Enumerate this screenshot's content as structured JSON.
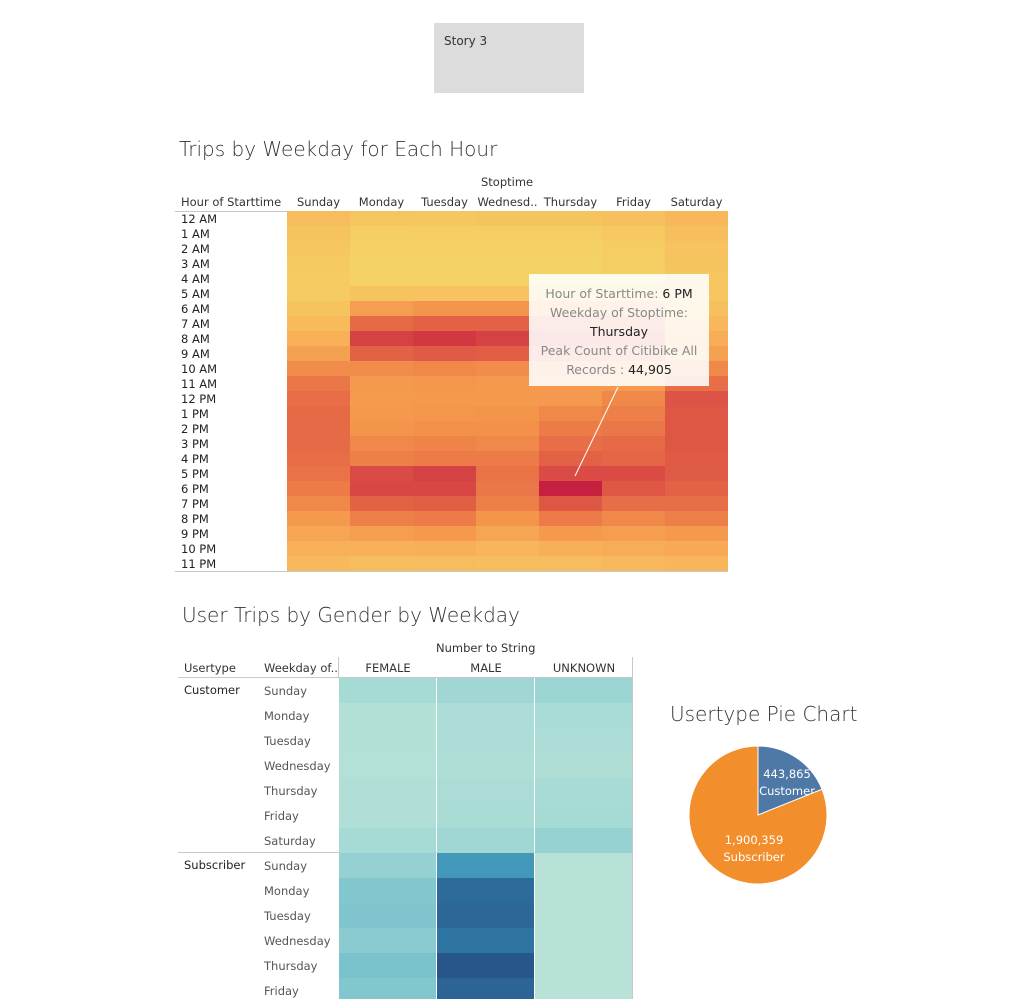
{
  "story_button": {
    "label": "Story 3"
  },
  "heatmap": {
    "title": "Trips by Weekday for Each Hour",
    "column_group_label": "Stoptime",
    "row_header": "Hour of Starttime",
    "tooltip": {
      "hour_label": "Hour of Starttime:",
      "hour_value": "6 PM",
      "weekday_label": "Weekday of Stoptime:",
      "weekday_value": "Thursday",
      "count_label": "Peak Count of Citibike All Records :",
      "count_value": "44,905"
    }
  },
  "gender_table": {
    "title": "User Trips by Gender by Weekday",
    "column_group_label": "Number to String",
    "header_usertype": "Usertype",
    "header_weekday": "Weekday of..",
    "columns": [
      "FEMALE",
      "MALE",
      "UNKNOWN"
    ],
    "groups": [
      {
        "name": "Customer",
        "days": [
          "Sunday",
          "Monday",
          "Tuesday",
          "Wednesday",
          "Thursday",
          "Friday",
          "Saturday"
        ]
      },
      {
        "name": "Subscriber",
        "days": [
          "Sunday",
          "Monday",
          "Tuesday",
          "Wednesday",
          "Thursday",
          "Friday"
        ]
      }
    ]
  },
  "pie": {
    "title": "Usertype Pie Chart"
  },
  "chart_data": [
    {
      "type": "heatmap",
      "title": "Trips by Weekday for Each Hour",
      "xlabel": "Stoptime",
      "ylabel": "Hour of Starttime",
      "x": [
        "Sunday",
        "Monday",
        "Tuesday",
        "Wednesd..",
        "Thursday",
        "Friday",
        "Saturday"
      ],
      "y": [
        "12 AM",
        "1 AM",
        "2 AM",
        "3 AM",
        "4 AM",
        "5 AM",
        "6 AM",
        "7 AM",
        "8 AM",
        "9 AM",
        "10 AM",
        "11 AM",
        "12 PM",
        "1 PM",
        "2 PM",
        "3 PM",
        "4 PM",
        "5 PM",
        "6 PM",
        "7 PM",
        "8 PM",
        "9 PM",
        "10 PM",
        "11 PM"
      ],
      "values": [
        [
          8000,
          5500,
          5000,
          6000,
          6000,
          7000,
          9500
        ],
        [
          6000,
          3000,
          3000,
          3500,
          3500,
          4500,
          7500
        ],
        [
          5000,
          2500,
          2500,
          2500,
          2500,
          3500,
          6500
        ],
        [
          4500,
          2000,
          2000,
          2000,
          2000,
          3000,
          6000
        ],
        [
          4000,
          2000,
          2000,
          2000,
          2000,
          2500,
          5000
        ],
        [
          4000,
          6000,
          6500,
          6500,
          6000,
          6000,
          5000
        ],
        [
          6000,
          16000,
          18000,
          18000,
          17500,
          16000,
          7000
        ],
        [
          8500,
          28000,
          30000,
          30000,
          29000,
          27000,
          9500
        ],
        [
          11000,
          38000,
          40000,
          38000,
          37000,
          34000,
          12000
        ],
        [
          15000,
          30000,
          32000,
          31000,
          30000,
          28000,
          15000
        ],
        [
          20000,
          20000,
          21000,
          20000,
          20000,
          19000,
          21000
        ],
        [
          25000,
          17000,
          17500,
          17000,
          17000,
          17000,
          27000
        ],
        [
          27000,
          16500,
          17000,
          17000,
          17000,
          21000,
          34000
        ],
        [
          28000,
          17000,
          17500,
          18000,
          21000,
          23000,
          33000
        ],
        [
          28000,
          18000,
          19000,
          19000,
          24000,
          25000,
          33000
        ],
        [
          28000,
          21000,
          22000,
          21000,
          27000,
          28000,
          33000
        ],
        [
          27000,
          23000,
          24000,
          24000,
          30000,
          29000,
          32000
        ],
        [
          26000,
          36000,
          38000,
          26000,
          36000,
          36000,
          32000
        ],
        [
          24000,
          37000,
          37000,
          25000,
          44905,
          33000,
          30000
        ],
        [
          21000,
          30000,
          31000,
          23000,
          33000,
          27000,
          27000
        ],
        [
          17000,
          23000,
          24000,
          18000,
          24000,
          21000,
          23000
        ],
        [
          14000,
          16000,
          17000,
          14000,
          17000,
          16000,
          17000
        ],
        [
          11000,
          11000,
          11500,
          10000,
          11500,
          12000,
          13000
        ],
        [
          9000,
          7500,
          8000,
          7500,
          8000,
          9000,
          10000
        ]
      ]
    },
    {
      "type": "heatmap",
      "title": "User Trips by Gender by Weekday",
      "xlabel": "Number to String",
      "x": [
        "FEMALE",
        "MALE",
        "UNKNOWN"
      ],
      "y": [
        "Customer Sunday",
        "Customer Monday",
        "Customer Tuesday",
        "Customer Wednesday",
        "Customer Thursday",
        "Customer Friday",
        "Customer Saturday",
        "Subscriber Sunday",
        "Subscriber Monday",
        "Subscriber Tuesday",
        "Subscriber Wednesday",
        "Subscriber Thursday",
        "Subscriber Friday"
      ],
      "values": [
        [
          22000,
          26000,
          30000
        ],
        [
          10000,
          16000,
          19000
        ],
        [
          10000,
          16000,
          17000
        ],
        [
          9000,
          14000,
          13000
        ],
        [
          11000,
          17000,
          20000
        ],
        [
          11000,
          18000,
          22000
        ],
        [
          22000,
          26000,
          34000
        ],
        [
          35000,
          95000,
          4000
        ],
        [
          50000,
          140000,
          4000
        ],
        [
          52000,
          145000,
          4000
        ],
        [
          46000,
          130000,
          4000
        ],
        [
          55000,
          165000,
          4000
        ],
        [
          50000,
          148000,
          4000
        ]
      ]
    },
    {
      "type": "pie",
      "title": "Usertype Pie Chart",
      "labels": [
        "Customer",
        "Subscriber"
      ],
      "values": [
        443865,
        1900359
      ],
      "value_labels": [
        "443,865",
        "1,900,359"
      ],
      "colors": [
        "#4e79a7",
        "#f28e2b"
      ]
    }
  ]
}
